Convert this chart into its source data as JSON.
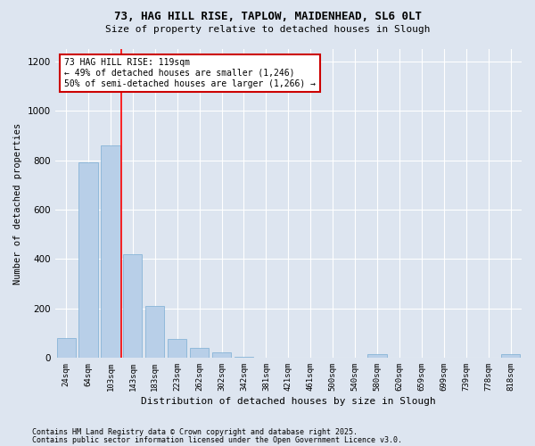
{
  "title1": "73, HAG HILL RISE, TAPLOW, MAIDENHEAD, SL6 0LT",
  "title2": "Size of property relative to detached houses in Slough",
  "xlabel": "Distribution of detached houses by size in Slough",
  "ylabel": "Number of detached properties",
  "categories": [
    "24sqm",
    "64sqm",
    "103sqm",
    "143sqm",
    "183sqm",
    "223sqm",
    "262sqm",
    "302sqm",
    "342sqm",
    "381sqm",
    "421sqm",
    "461sqm",
    "500sqm",
    "540sqm",
    "580sqm",
    "620sqm",
    "659sqm",
    "699sqm",
    "739sqm",
    "778sqm",
    "818sqm"
  ],
  "values": [
    80,
    790,
    860,
    420,
    210,
    75,
    40,
    20,
    5,
    0,
    0,
    0,
    0,
    0,
    15,
    0,
    0,
    0,
    0,
    0,
    15
  ],
  "bar_color": "#b8cfe8",
  "bar_edge_color": "#7aadd4",
  "red_line_x": 2.5,
  "annotation_text": "73 HAG HILL RISE: 119sqm\n← 49% of detached houses are smaller (1,246)\n50% of semi-detached houses are larger (1,266) →",
  "annotation_box_color": "#ffffff",
  "annotation_box_edge": "#cc0000",
  "footnote1": "Contains HM Land Registry data © Crown copyright and database right 2025.",
  "footnote2": "Contains public sector information licensed under the Open Government Licence v3.0.",
  "bg_color": "#dde5f0",
  "plot_bg_color": "#dde5f0",
  "ylim": [
    0,
    1250
  ],
  "yticks": [
    0,
    200,
    400,
    600,
    800,
    1000,
    1200
  ]
}
